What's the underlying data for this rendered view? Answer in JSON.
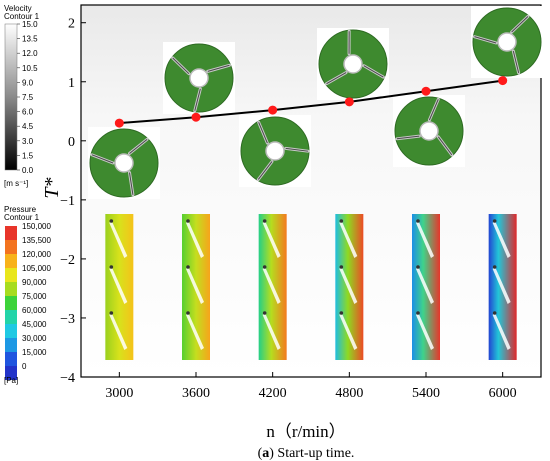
{
  "chart_data": {
    "type": "line",
    "x": [
      3000,
      3600,
      4200,
      4800,
      5400,
      6000
    ],
    "y": [
      0.3,
      0.4,
      0.52,
      0.66,
      0.84,
      1.02
    ],
    "xlim": [
      2700,
      6300
    ],
    "ylim": [
      -4,
      2.3
    ],
    "x_ticks": [
      "3000",
      "3600",
      "4200",
      "4800",
      "5400",
      "6000"
    ],
    "y_ticks": [
      "2",
      "1",
      "0",
      "−1",
      "−2",
      "−3",
      "−4"
    ],
    "ylabel": "T*",
    "xlabel": "n（r/min）",
    "line_color": "#000000",
    "marker_color": "#ff1a1a",
    "velocity_legend": {
      "title1": "Velocity",
      "title2": "Contour 1",
      "labels": [
        "15.0",
        "13.5",
        "12.0",
        "10.5",
        "9.0",
        "7.5",
        "6.0",
        "4.5",
        "3.0",
        "1.5",
        "0.0"
      ],
      "unit": "[m  s⁻¹]"
    },
    "pressure_legend": {
      "title1": "Pressure",
      "title2": "Contour 1",
      "labels": [
        "150,000",
        "135,500",
        "120,000",
        "105,000",
        "90,000",
        "75,000",
        "60,000",
        "45,000",
        "30,000",
        "15,000",
        "0"
      ],
      "colors": [
        "#e8352a",
        "#f3731f",
        "#f8b21a",
        "#e9e61c",
        "#a7dc1e",
        "#3cd33a",
        "#22d4a8",
        "#1fc9e3",
        "#1c98e4",
        "#1f55df",
        "#2233c9"
      ],
      "unit": "[Pa]"
    }
  },
  "caption": {
    "label": "a",
    "text": " Start-up time."
  }
}
